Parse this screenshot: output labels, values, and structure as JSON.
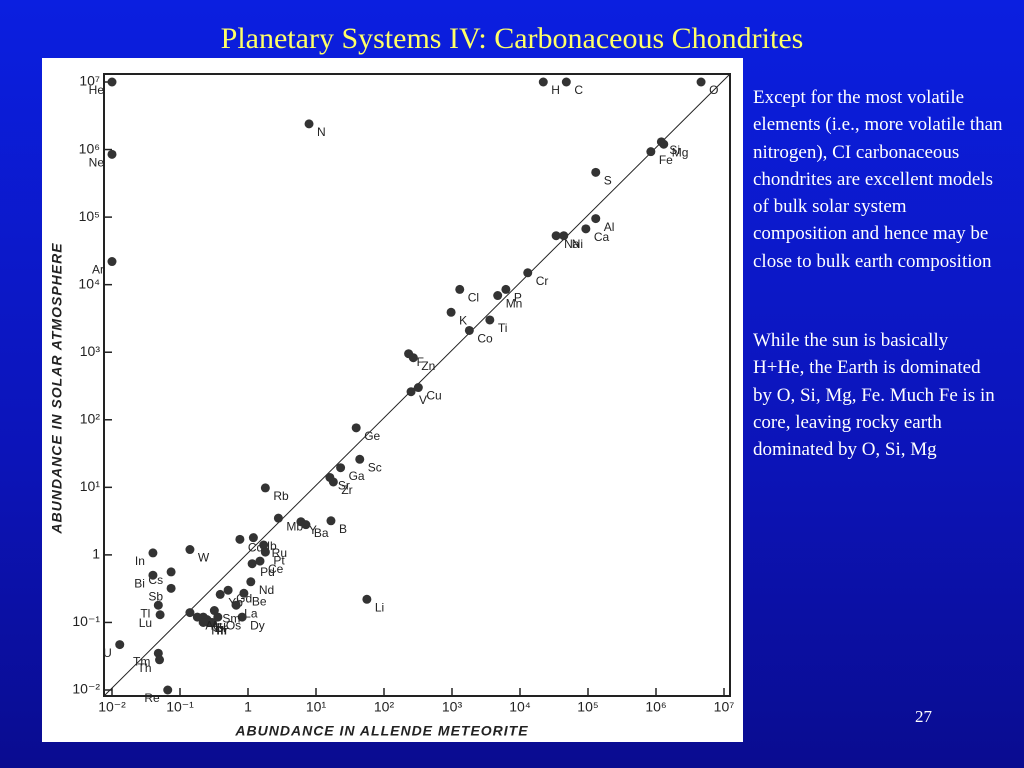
{
  "header": {
    "title": "Planetary Systems IV: Carbonaceous Chondrites"
  },
  "notes": [
    "Except for the most volatile elements (i.e., more volatile than nitrogen), CI carbonaceous chondrites are excellent models of bulk solar system composition and hence may be close to bulk earth composition",
    "While the sun is basically H+He, the Earth is dominated by O, Si, Mg, Fe.  Much Fe is in core, leaving rocky earth dominated by O, Si, Mg"
  ],
  "page_number": 27,
  "chart_data": {
    "type": "scatter",
    "xlabel": "ABUNDANCE IN ALLENDE METEORITE",
    "ylabel": "ABUNDANCE IN SOLAR ATMOSPHERE",
    "log_x": true,
    "log_y": true,
    "color": "#333333",
    "xlim": [
      0.01,
      10000000
    ],
    "ylim": [
      0.01,
      10000000
    ],
    "xticks": [
      {
        "value": 0.01,
        "label": "10⁻²"
      },
      {
        "value": 0.1,
        "label": "10⁻¹"
      },
      1,
      {
        "value": 10,
        "label": "10¹"
      },
      {
        "value": 100,
        "label": "10²"
      },
      {
        "value": 1000,
        "label": "10³"
      },
      {
        "value": 10000,
        "label": "10⁴"
      },
      {
        "value": 100000,
        "label": "10⁵"
      },
      {
        "value": 1000000,
        "label": "10⁶"
      },
      {
        "value": 10000000,
        "label": "10⁷"
      }
    ],
    "yticks": [
      {
        "value": 0.01,
        "label": "10⁻²"
      },
      {
        "value": 0.1,
        "label": "10⁻¹"
      },
      1,
      {
        "value": 10,
        "label": "10¹"
      },
      {
        "value": 100,
        "label": "10²"
      },
      {
        "value": 1000,
        "label": "10³"
      },
      {
        "value": 10000,
        "label": "10⁴"
      },
      {
        "value": 100000,
        "label": "10⁵"
      },
      {
        "value": 1000000,
        "label": "10⁶"
      },
      {
        "value": 10000000,
        "label": "10⁷"
      }
    ],
    "labels": [
      "He",
      "H",
      "C",
      "O",
      "N",
      "Ne",
      "Ar",
      "Si",
      "Fe",
      "Mg",
      "S",
      "Al",
      "Ca",
      "Na",
      "Ni",
      "Cr",
      "Cl",
      "Mn",
      "P",
      "K",
      "Ti",
      "Co",
      "F",
      "Zn",
      "V",
      "Cu",
      "Ge",
      "Sc",
      "Ga",
      "Sr",
      "Zr",
      "Rb",
      "Mb",
      "Y",
      "B",
      "Ba",
      "Cd",
      "Nb",
      "Ru",
      "Pt",
      "W",
      "In",
      "Pd",
      "Ce",
      "Cs",
      "Bi",
      "Gd",
      "Nd",
      "Sb",
      "Yb",
      "Be",
      "Tl",
      "La",
      "Lu",
      "Dy",
      "Eu",
      "Os",
      "Sm",
      "Ir",
      "Er",
      "Au",
      "Pr",
      "Hf",
      "Ag",
      "U",
      "Tm",
      "Th",
      "Re",
      "Li"
    ],
    "x": [
      0.01,
      22000,
      48000,
      4600000,
      7.9,
      0.01,
      0.01,
      1200000,
      840000,
      1300000,
      130000,
      130000,
      93000,
      34000,
      44000,
      13000,
      1300,
      4700,
      6200,
      970,
      3600,
      1800,
      230,
      270,
      250,
      320,
      39,
      44,
      23,
      16,
      18,
      1.8,
      2.8,
      6,
      16.6,
      7.1,
      0.76,
      1.2,
      1.7,
      1.8,
      0.14,
      0.04,
      1.15,
      1.5,
      0.074,
      0.04,
      0.51,
      1.1,
      0.074,
      0.39,
      0.87,
      0.048,
      0.67,
      0.051,
      0.82,
      0.14,
      0.36,
      0.32,
      0.3,
      0.25,
      0.22,
      0.26,
      0.22,
      0.18,
      0.013,
      0.048,
      0.05,
      0.066,
      56
    ],
    "values": [
      10000000,
      10000000,
      10000000,
      10000000,
      2400000,
      850000,
      22000,
      1300000,
      930000,
      1200000,
      460000,
      95000,
      67000,
      53000,
      53000,
      15000,
      8500,
      6900,
      8500,
      3900,
      3000,
      2100,
      950,
      830,
      260,
      300,
      76,
      26,
      19.5,
      14,
      12,
      9.8,
      3.5,
      3.1,
      3.2,
      2.8,
      1.7,
      1.8,
      1.4,
      1.1,
      1.2,
      1.07,
      0.74,
      0.81,
      0.56,
      0.5,
      0.3,
      0.4,
      0.32,
      0.26,
      0.27,
      0.18,
      0.18,
      0.13,
      0.12,
      0.14,
      0.12,
      0.15,
      0.1,
      0.11,
      0.12,
      0.1,
      0.1,
      0.12,
      0.047,
      0.035,
      0.028,
      0.01,
      0.22
    ]
  }
}
